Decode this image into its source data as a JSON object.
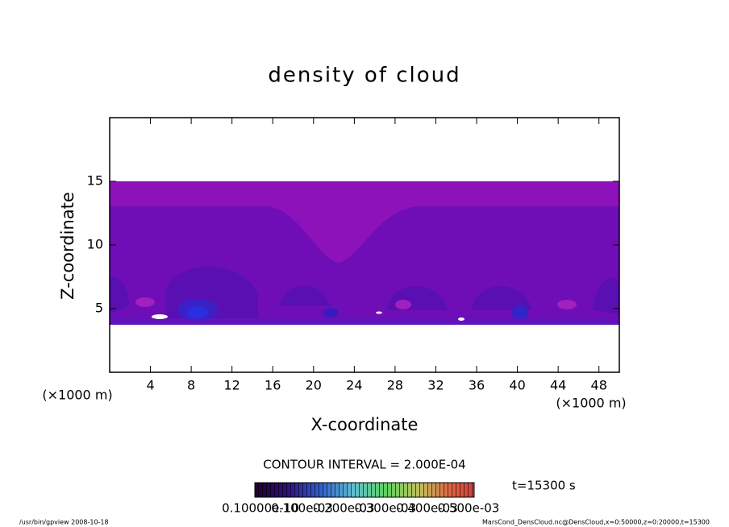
{
  "chart_data": {
    "type": "contour",
    "title": "density of cloud",
    "x_label": "X-coordinate",
    "y_label": "Z-coordinate",
    "x_unit": "(×1000 m)",
    "x_unit_right": "(×1000 m)",
    "xlim": [
      0,
      50
    ],
    "ylim": [
      0,
      20
    ],
    "xticks": [
      4,
      8,
      12,
      16,
      20,
      24,
      28,
      32,
      36,
      40,
      44,
      48
    ],
    "yticks": [
      5,
      10,
      15
    ],
    "contour_interval": "CONTOUR INTERVAL = 2.000E-04",
    "time": "t=15300 s",
    "colorbar_labels": [
      "0.10000e-10",
      "0.100e-03",
      "0.200e-03",
      "0.300e-03",
      "0.400e-03",
      "0.500e-03"
    ],
    "footer_left": "/usr/bin/gpview   2008-10-18",
    "footer_right": "MarsCond_DensCloud.nc@DensCloud,x=0:50000,z=0:20000,t=15300"
  }
}
